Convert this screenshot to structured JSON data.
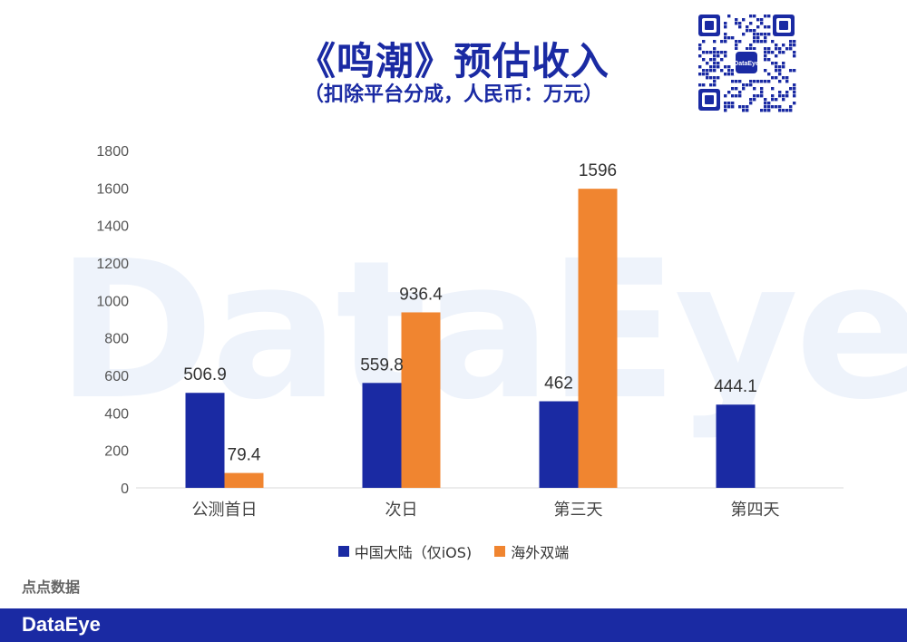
{
  "header": {
    "title": "《鸣潮》预估收入",
    "subtitle": "（扣除平台分成，人民币：万元）"
  },
  "qr": {
    "center_label": "DataEye"
  },
  "watermark": "DataEye",
  "source": "点点数据",
  "footer": {
    "logo": "DataEye"
  },
  "colors": {
    "mainland": "#1a2aa3",
    "overseas": "#f08530",
    "brand": "#1a2aa3"
  },
  "chart_data": {
    "type": "bar",
    "categories": [
      "公测首日",
      "次日",
      "第三天",
      "第四天"
    ],
    "series": [
      {
        "name": "中国大陆（仅iOS)",
        "values": [
          506.9,
          559.8,
          462,
          444.1
        ],
        "labels": [
          "506.9",
          "559.8",
          "462",
          "444.1"
        ]
      },
      {
        "name": "海外双端",
        "values": [
          79.4,
          936.4,
          1596,
          null
        ],
        "labels": [
          "79.4",
          "936.4",
          "1596",
          ""
        ]
      }
    ],
    "y_ticks": [
      0,
      200,
      400,
      600,
      800,
      1000,
      1200,
      1400,
      1600,
      1800
    ],
    "ylim": [
      0,
      1800
    ],
    "grid": false,
    "legend_position": "bottom"
  }
}
